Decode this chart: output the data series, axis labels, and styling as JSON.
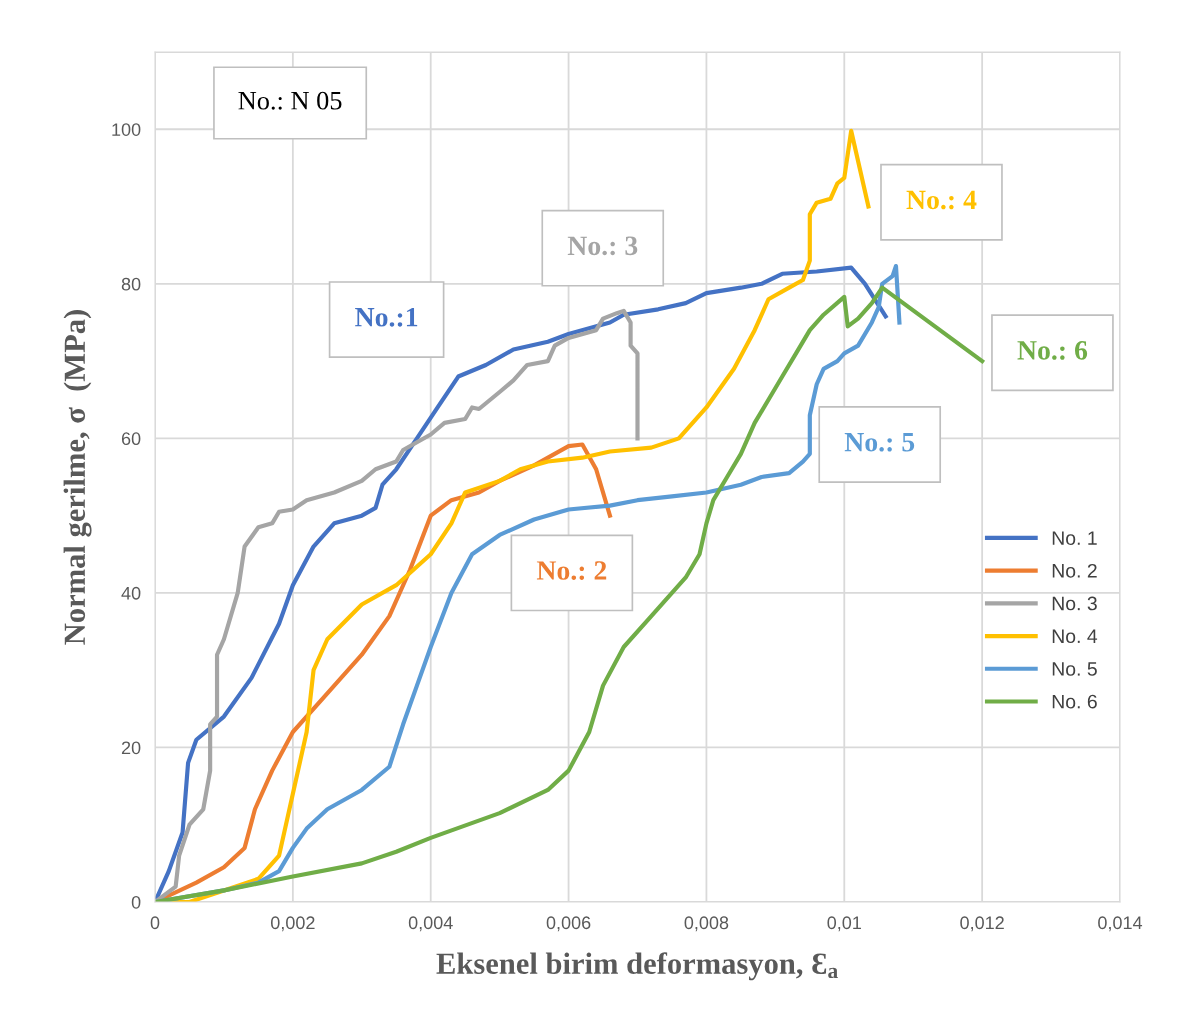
{
  "chart_data": {
    "type": "line",
    "xlabel": "Eksenel birim deformasyon, Ɛ$_{a}$",
    "ylabel": "Normal gerilme, σ  (MPa)",
    "xlim": [
      0,
      0.014
    ],
    "ylim": [
      0,
      110
    ],
    "xticks": [
      0,
      {
        "value": 0.002,
        "label": "0,002"
      },
      {
        "value": 0.004,
        "label": "0,004"
      },
      {
        "value": 0.006,
        "label": "0,006"
      },
      {
        "value": 0.008,
        "label": "0,008"
      },
      {
        "value": 0.01,
        "label": "0,01"
      },
      {
        "value": 0.012,
        "label": "0,012"
      },
      {
        "value": 0.014,
        "label": "0,014"
      }
    ],
    "yticks": [
      0,
      20,
      40,
      60,
      80,
      100,
      {
        "value": 110,
        "label": null
      }
    ],
    "grid": true,
    "legend": "right",
    "marker": "none",
    "line_style": "solid",
    "annotations": [
      "No.: N 05",
      "No.:1",
      "No.: 2",
      "No.: 3",
      "No.: 4",
      "No.: 5",
      "No.: 6"
    ],
    "series": [
      {
        "name": "No. 1",
        "color": "#4472c4",
        "x": [
          0,
          0.0002,
          0.0004,
          0.00048,
          0.0006,
          0.001,
          0.0014,
          0.0018,
          0.002,
          0.0023,
          0.0026,
          0.003,
          0.0032,
          0.0033,
          0.0035,
          0.0038,
          0.0041,
          0.0044,
          0.0048,
          0.0052,
          0.0057,
          0.006,
          0.0066,
          0.0068,
          0.0073,
          0.0077,
          0.008,
          0.0085,
          0.0088,
          0.0091,
          0.0096,
          0.0101,
          0.0103,
          0.0106
        ],
        "values": [
          0,
          4,
          9,
          18,
          21,
          24,
          29,
          36,
          41,
          46,
          49,
          50,
          51,
          54,
          56,
          60,
          64,
          68,
          69.5,
          71.5,
          72.5,
          73.5,
          75,
          76,
          76.7,
          77.5,
          78.8,
          79.5,
          80,
          81.3,
          81.6,
          82.1,
          80,
          75.8
        ]
      },
      {
        "name": "No. 2",
        "color": "#ed7d31",
        "x": [
          0,
          0.0006,
          0.001,
          0.0013,
          0.00145,
          0.0017,
          0.002,
          0.0025,
          0.003,
          0.0034,
          0.0037,
          0.004,
          0.0043,
          0.0047,
          0.005,
          0.0055,
          0.006,
          0.0062,
          0.0064,
          0.0066
        ],
        "values": [
          0,
          2.5,
          4.5,
          7,
          12,
          17,
          22,
          27,
          32,
          37,
          43,
          50,
          52,
          53,
          54.5,
          56.5,
          59,
          59.2,
          56,
          50
        ]
      },
      {
        "name": "No. 3",
        "color": "#a5a5a5",
        "x": [
          0,
          0.0003,
          0.00035,
          0.0005,
          0.0007,
          0.0008,
          0.0008,
          0.0009,
          0.0009,
          0.001,
          0.0012,
          0.0013,
          0.0015,
          0.0017,
          0.0018,
          0.002,
          0.0022,
          0.0026,
          0.003,
          0.0032,
          0.0035,
          0.0036,
          0.004,
          0.0042,
          0.0045,
          0.0046,
          0.0047,
          0.005,
          0.0052,
          0.0054,
          0.0057,
          0.0058,
          0.006,
          0.0064,
          0.0065,
          0.0067,
          0.0068,
          0.0069,
          0.0069,
          0.007,
          0.007
        ],
        "values": [
          0,
          2,
          6,
          10,
          12,
          17,
          23,
          24,
          32,
          34,
          40,
          46,
          48.5,
          49,
          50.5,
          50.8,
          52,
          53,
          54.5,
          56,
          57,
          58.5,
          60.5,
          62,
          62.5,
          64,
          63.8,
          66,
          67.5,
          69.5,
          70,
          72,
          73,
          74,
          75.5,
          76.2,
          76.5,
          75,
          72,
          71,
          60
        ]
      },
      {
        "name": "No. 4",
        "color": "#ffc000",
        "x": [
          0,
          0.0005,
          0.001,
          0.0015,
          0.0018,
          0.002,
          0.0022,
          0.0023,
          0.0025,
          0.003,
          0.0035,
          0.004,
          0.0043,
          0.0045,
          0.005,
          0.0053,
          0.0057,
          0.0062,
          0.0066,
          0.0072,
          0.0076,
          0.008,
          0.0084,
          0.0087,
          0.0089,
          0.0092,
          0.0094,
          0.0095,
          0.0095,
          0.0096,
          0.0098,
          0.0099,
          0.01,
          0.0101,
          0.01035
        ],
        "values": [
          0,
          0,
          1.5,
          3,
          6,
          14,
          22,
          30,
          34,
          38.5,
          41,
          45,
          49,
          53,
          54.5,
          56,
          57,
          57.5,
          58.3,
          58.8,
          60,
          64,
          69,
          74,
          78,
          79.5,
          80.5,
          83,
          89,
          90.5,
          91,
          93,
          93.7,
          99.8,
          90
        ]
      },
      {
        "name": "No. 5",
        "color": "#5b9bd5",
        "x": [
          0,
          0.001,
          0.0015,
          0.0018,
          0.002,
          0.0022,
          0.0025,
          0.003,
          0.0034,
          0.0036,
          0.0038,
          0.004,
          0.0043,
          0.0046,
          0.005,
          0.0055,
          0.006,
          0.0066,
          0.007,
          0.0075,
          0.008,
          0.0085,
          0.0088,
          0.0092,
          0.0094,
          0.0095,
          0.0095,
          0.0096,
          0.0097,
          0.0099,
          0.01,
          0.0102,
          0.0104,
          0.0105,
          0.01055,
          0.0107,
          0.01075,
          0.0108
        ],
        "values": [
          0,
          1.5,
          2.5,
          4,
          7,
          9.5,
          12,
          14.5,
          17.5,
          23,
          28,
          33,
          40,
          45,
          47.5,
          49.5,
          50.8,
          51.3,
          52,
          52.5,
          53,
          54,
          55,
          55.5,
          57,
          58,
          63,
          67,
          69,
          70,
          71,
          72,
          75,
          77,
          80,
          81,
          82.3,
          75
        ]
      },
      {
        "name": "No. 6",
        "color": "#70ad47",
        "x": [
          0,
          0.001,
          0.002,
          0.003,
          0.0035,
          0.004,
          0.005,
          0.0057,
          0.006,
          0.0063,
          0.0065,
          0.0068,
          0.0072,
          0.0077,
          0.0079,
          0.008,
          0.0081,
          0.0083,
          0.0085,
          0.0087,
          0.0089,
          0.0091,
          0.0093,
          0.0095,
          0.0097,
          0.01,
          0.01005,
          0.0102,
          0.0104,
          0.01055,
          0.012
        ],
        "values": [
          0,
          1.5,
          3.3,
          5,
          6.5,
          8.3,
          11.5,
          14.5,
          17,
          22,
          28,
          33,
          37,
          42,
          45,
          49,
          52,
          55,
          58,
          62,
          65,
          68,
          71,
          74,
          76,
          78.3,
          74.5,
          75.5,
          77.5,
          79.5,
          70
        ]
      }
    ]
  }
}
